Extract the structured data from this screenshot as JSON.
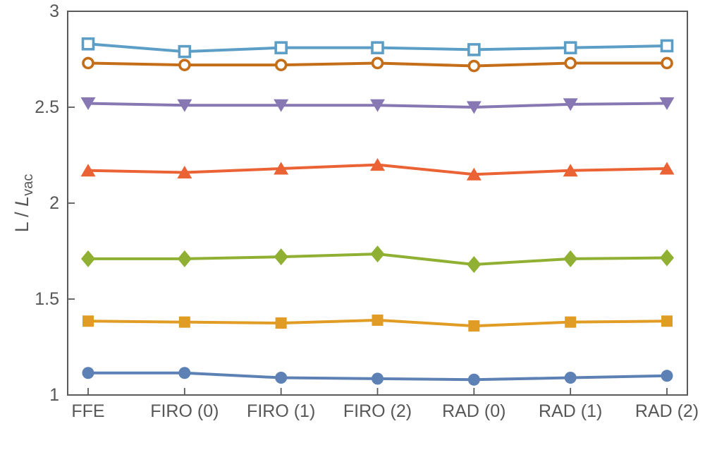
{
  "figure": {
    "kind": "framed-line-plot",
    "background": "#ffffff",
    "frame_color": "#5a5a5a",
    "text_color": "#575757"
  },
  "chart_data": {
    "type": "line",
    "title": "",
    "xlabel": "",
    "ylabel": {
      "plain": "L / L_vac",
      "prefix": "L / ",
      "italic_symbol": "L",
      "subscript": "vac"
    },
    "categories": [
      "FFE",
      "FIRO (0)",
      "FIRO (1)",
      "FIRO (2)",
      "RAD (0)",
      "RAD (1)",
      "RAD (2)"
    ],
    "ylim": [
      1,
      3
    ],
    "yticks": [
      1,
      1.5,
      2,
      2.5,
      3
    ],
    "ytick_labels": [
      "1",
      "1.5",
      "2",
      "2.5",
      "3"
    ],
    "grid": false,
    "legend_position": "none",
    "series": [
      {
        "name": "open-square-series",
        "marker": "open-square",
        "color": "#5d9ec7",
        "values": [
          2.83,
          2.79,
          2.81,
          2.81,
          2.8,
          2.81,
          2.82
        ]
      },
      {
        "name": "open-circle-series",
        "marker": "open-circle",
        "color": "#c56e1a",
        "values": [
          2.73,
          2.72,
          2.72,
          2.73,
          2.715,
          2.73,
          2.73
        ]
      },
      {
        "name": "triangle-down-series",
        "marker": "triangle-down",
        "color": "#8778b3",
        "values": [
          2.52,
          2.51,
          2.51,
          2.51,
          2.5,
          2.515,
          2.52
        ]
      },
      {
        "name": "triangle-up-series",
        "marker": "triangle-up",
        "color": "#eb6235",
        "values": [
          2.17,
          2.16,
          2.18,
          2.2,
          2.15,
          2.17,
          2.18
        ]
      },
      {
        "name": "diamond-series",
        "marker": "diamond",
        "color": "#8fb032",
        "values": [
          1.71,
          1.71,
          1.72,
          1.735,
          1.68,
          1.71,
          1.715
        ]
      },
      {
        "name": "square-series",
        "marker": "square",
        "color": "#e09c24",
        "values": [
          1.385,
          1.38,
          1.375,
          1.39,
          1.36,
          1.38,
          1.385
        ]
      },
      {
        "name": "circle-series",
        "marker": "circle",
        "color": "#5e81b5",
        "values": [
          1.115,
          1.115,
          1.09,
          1.085,
          1.08,
          1.09,
          1.1
        ]
      }
    ]
  }
}
